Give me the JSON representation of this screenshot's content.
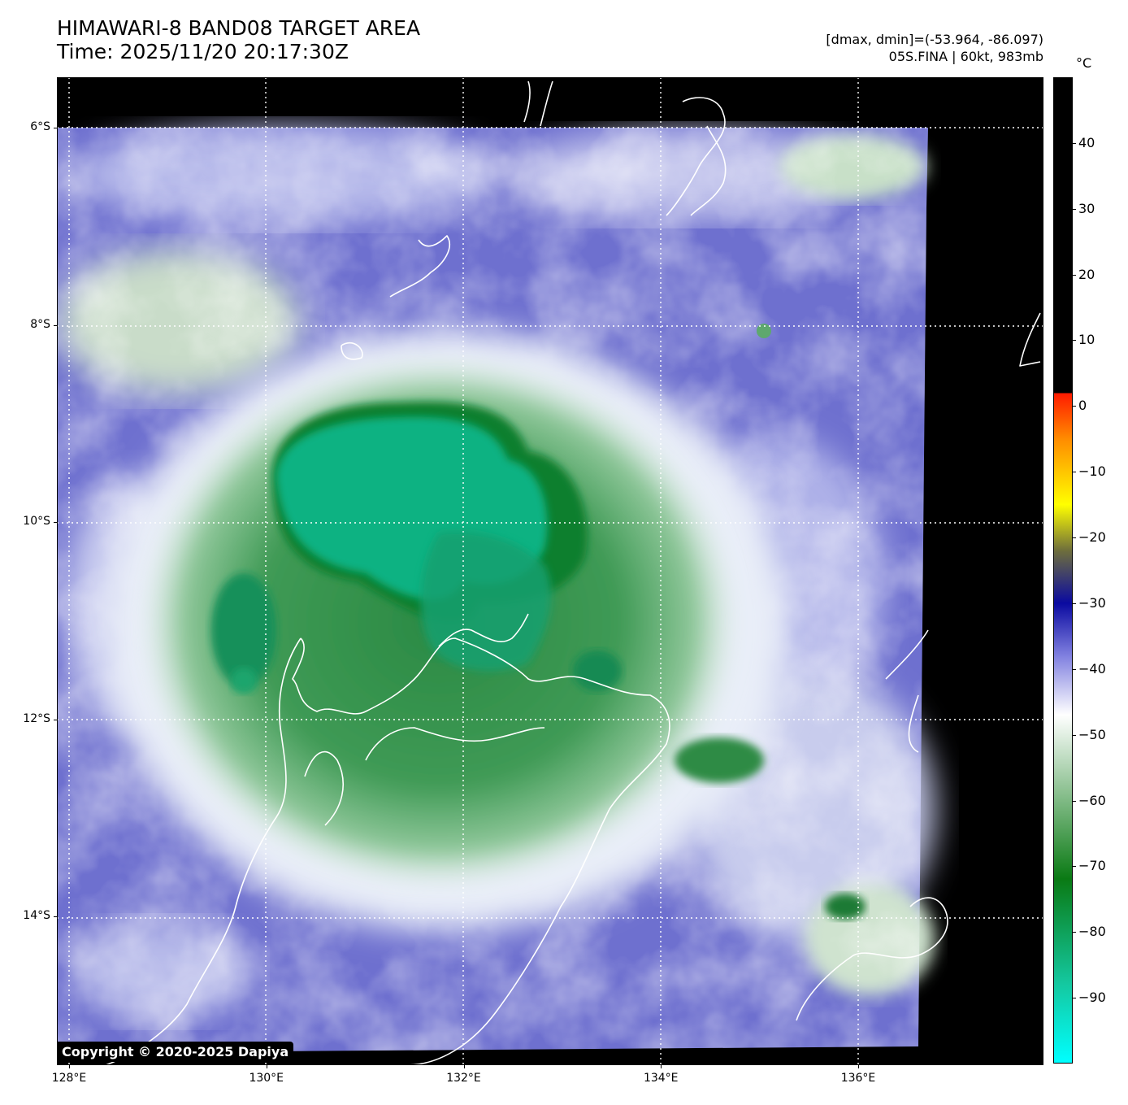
{
  "header": {
    "title": "HIMAWARI-8 BAND08 TARGET AREA",
    "time": "Time: 2025/11/20 20:17:30Z",
    "range": "[dmax, dmin]=(-53.964, -86.097)",
    "storm": "05S.FINA | 60kt, 983mb"
  },
  "colorbar": {
    "unit": "°C",
    "ticks": [
      {
        "label": "40",
        "value": 40
      },
      {
        "label": "30",
        "value": 30
      },
      {
        "label": "20",
        "value": 20
      },
      {
        "label": "10",
        "value": 10
      },
      {
        "label": "0",
        "value": 0
      },
      {
        "label": "−10",
        "value": -10
      },
      {
        "label": "−20",
        "value": -20
      },
      {
        "label": "−30",
        "value": -30
      },
      {
        "label": "−40",
        "value": -40
      },
      {
        "label": "−50",
        "value": -50
      },
      {
        "label": "−60",
        "value": -60
      },
      {
        "label": "−70",
        "value": -70
      },
      {
        "label": "−80",
        "value": -80
      },
      {
        "label": "−90",
        "value": -90
      }
    ],
    "range": [
      -100,
      50
    ],
    "colors": {
      "black": "#000000",
      "red": "#ff1a00",
      "orange": "#ff8c00",
      "yellow": "#ffff00",
      "olive": "#6e6e3c",
      "navy": "#0a0aa0",
      "periwinkle": "#8080e0",
      "white": "#ffffff",
      "green": "#0a7a14",
      "teal": "#14c8a0",
      "cyan": "#00ffff"
    }
  },
  "map": {
    "lat_labels": [
      {
        "label": "6°S",
        "value": -6
      },
      {
        "label": "8°S",
        "value": -8
      },
      {
        "label": "10°S",
        "value": -10
      },
      {
        "label": "12°S",
        "value": -12
      },
      {
        "label": "14°S",
        "value": -14
      }
    ],
    "lon_labels": [
      {
        "label": "128°E",
        "value": 128
      },
      {
        "label": "130°E",
        "value": 130
      },
      {
        "label": "132°E",
        "value": 132
      },
      {
        "label": "134°E",
        "value": 134
      },
      {
        "label": "136°E",
        "value": 136
      }
    ],
    "copyright": "Copyright © 2020-2025 Dapiya"
  }
}
